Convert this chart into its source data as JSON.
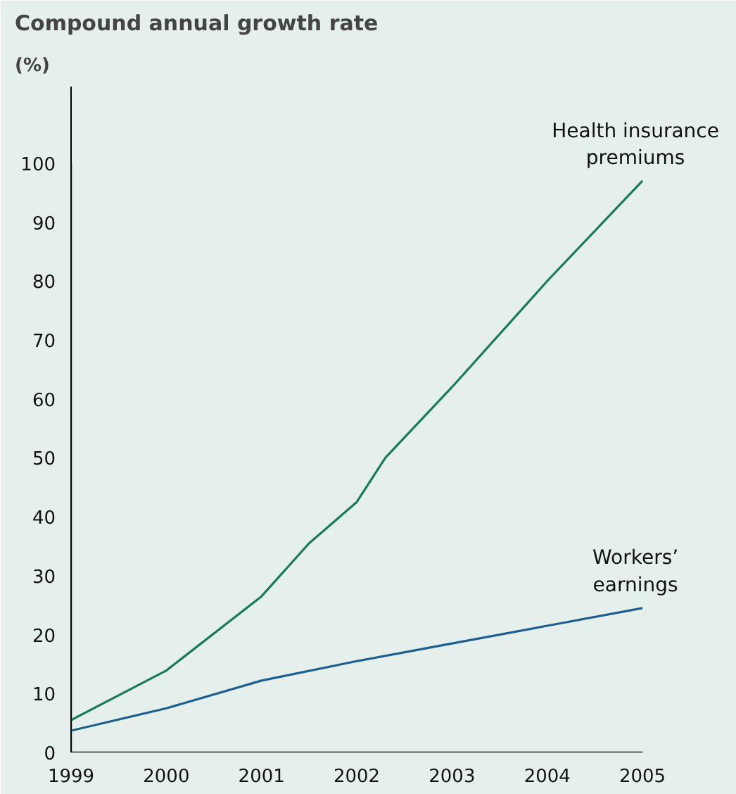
{
  "chart_data": {
    "type": "line",
    "title": "Compound annual growth rate",
    "ylabel": "(%)",
    "x": [
      1999,
      2000,
      2001,
      2001.5,
      2002,
      2002.3,
      2003,
      2004,
      2005
    ],
    "series": [
      {
        "name": "Health insurance premiums",
        "color": "#1a7a5a",
        "values": [
          5.5,
          13.9,
          26.5,
          35.5,
          42.5,
          50,
          62,
          80,
          97
        ]
      },
      {
        "name": "Workers’ earnings",
        "color": "#1f5f8f",
        "x": [
          1999,
          2000,
          2001,
          2002,
          2003,
          2004,
          2005
        ],
        "values": [
          3.7,
          7.5,
          12.2,
          15.5,
          18.5,
          21.5,
          24.5
        ]
      }
    ],
    "xlim": [
      1999,
      2005
    ],
    "ylim": [
      0,
      100
    ],
    "xticks": [
      1999,
      2000,
      2001,
      2002,
      2003,
      2004,
      2005
    ],
    "yticks": [
      0,
      10,
      20,
      30,
      40,
      50,
      60,
      70,
      80,
      90,
      100
    ],
    "grid": false,
    "marker": "none",
    "line_style": "solid"
  }
}
